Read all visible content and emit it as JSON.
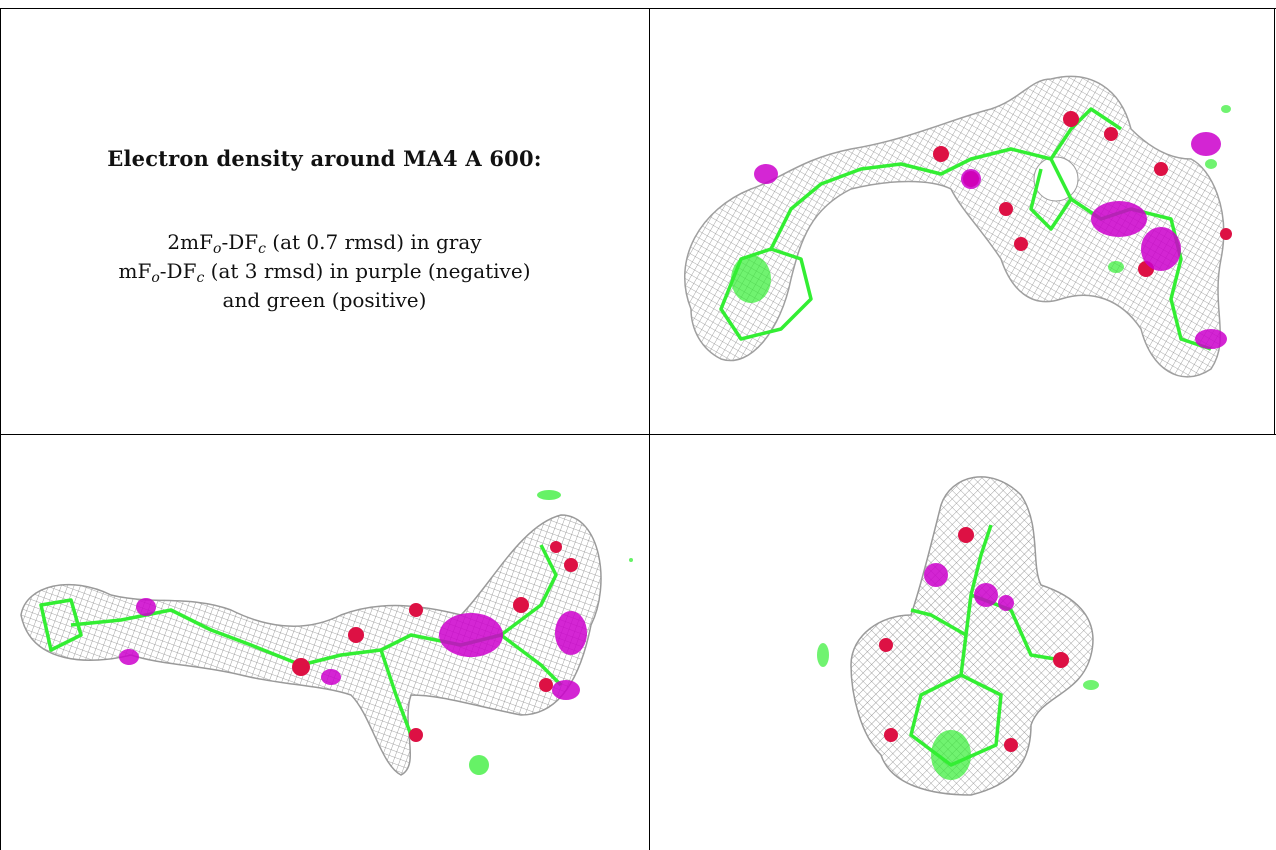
{
  "caption": {
    "title": "Electron density around MA4 A 600:",
    "line1": {
      "prefix": "2mF",
      "sub1": "o",
      "mid": "-DF",
      "sub2": "c",
      "suffix": " (at 0.7 rmsd) in gray"
    },
    "line2": {
      "prefix": "mF",
      "sub1": "o",
      "mid": "-DF",
      "sub2": "c",
      "suffix": " (at 3 rmsd) in purple (negative)"
    },
    "line3": "and green (positive)"
  },
  "colors": {
    "mesh_gray": "#8c8c8c",
    "negative_purple": "#cc00cc",
    "positive_green": "#33ee33",
    "oxygen_red": "#dd1144",
    "border": "#000000"
  },
  "panels": [
    {
      "id": "view-1",
      "icon": "electron-density-mesh-icon"
    },
    {
      "id": "view-2",
      "icon": "electron-density-mesh-icon"
    },
    {
      "id": "view-3",
      "icon": "electron-density-mesh-icon"
    }
  ]
}
